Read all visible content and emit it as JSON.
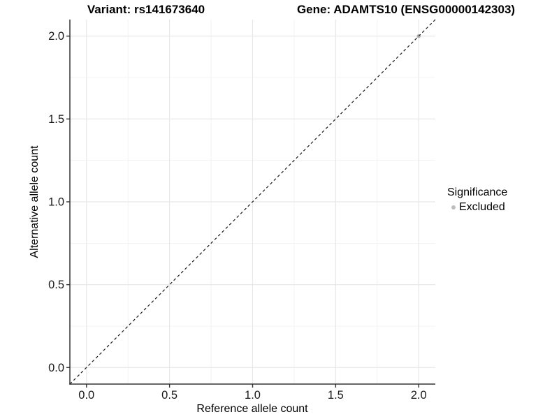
{
  "figure": {
    "title_left": "Variant: rs141673640",
    "title_right": "Gene: ADAMTS10 (ENSG00000142303)"
  },
  "legend": {
    "title": "Significance",
    "items": [
      {
        "label": "Excluded",
        "color": "#bdbdbd",
        "shape": "circle"
      }
    ]
  },
  "chart_data": {
    "type": "scatter",
    "xlabel": "Reference allele count",
    "ylabel": "Alternative allele count",
    "xlim": [
      -0.1,
      2.1
    ],
    "ylim": [
      -0.1,
      2.1
    ],
    "x_ticks": {
      "values": [
        0,
        0.5,
        1,
        1.5,
        2
      ],
      "labels": [
        "0.0",
        "0.5",
        "1.0",
        "1.5",
        "2.0"
      ]
    },
    "y_ticks": {
      "values": [
        0,
        0.5,
        1,
        1.5,
        2
      ],
      "labels": [
        "0.0",
        "0.5",
        "1.0",
        "1.5",
        "2.0"
      ]
    },
    "x_minor": [
      0.25,
      0.75,
      1.25,
      1.75
    ],
    "y_minor": [
      0.25,
      0.75,
      1.25,
      1.75
    ],
    "grid": "major+minor",
    "legend_position": "right",
    "series": [
      {
        "name": "Excluded",
        "color": "#b5b5b5",
        "points": [
          {
            "x": 2.0,
            "y": 2.0
          }
        ]
      }
    ],
    "reference_line": {
      "slope": 1,
      "intercept": 0,
      "style": "dashed",
      "color": "#1a1a1a"
    }
  },
  "colors": {
    "background": "#ffffff",
    "grid_major": "#e8e8e8",
    "grid_minor": "#f3f3f3",
    "axis": "#333333",
    "tick_text": "#1a1a1a"
  }
}
